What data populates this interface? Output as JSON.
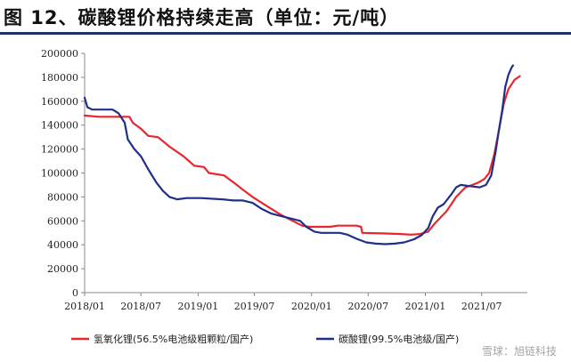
{
  "title": "图 12、碳酸锂价格持续走高（单位：元/吨）",
  "colors": {
    "title_rule": "#1e3270",
    "series_1": "#e8262d",
    "series_2": "#1f2f8a",
    "axis": "#888888"
  },
  "watermark": "雪球：旭链科技",
  "chart_data": {
    "type": "line",
    "title": "",
    "xlabel": "",
    "ylabel": "",
    "x_axis": "date",
    "xlim": [
      "2018-01-01",
      "2021-11-25"
    ],
    "ylim": [
      0,
      200000
    ],
    "yticks": [
      0,
      20000,
      40000,
      60000,
      80000,
      100000,
      120000,
      140000,
      160000,
      180000,
      200000
    ],
    "xtick_dates": [
      "2018-01-01",
      "2018-07-01",
      "2019-01-01",
      "2019-07-01",
      "2020-01-01",
      "2020-07-01",
      "2021-01-01",
      "2021-07-01"
    ],
    "xtick_labels": [
      "2018/01",
      "2018/07",
      "2019/01",
      "2019/07",
      "2020/01",
      "2020/07",
      "2021/01",
      "2021/07"
    ],
    "grid": false,
    "legend_position": "bottom",
    "series": [
      {
        "name": "氢氧化锂(56.5%电池级粗颗粒/国产)",
        "color": "#e8262d",
        "points": [
          [
            "2018-01-01",
            148000
          ],
          [
            "2018-02-15",
            147000
          ],
          [
            "2018-05-25",
            147000
          ],
          [
            "2018-06-05",
            142000
          ],
          [
            "2018-07-01",
            137000
          ],
          [
            "2018-07-25",
            131000
          ],
          [
            "2018-08-25",
            130000
          ],
          [
            "2018-10-01",
            122000
          ],
          [
            "2018-11-15",
            114000
          ],
          [
            "2018-12-20",
            106000
          ],
          [
            "2019-01-20",
            105000
          ],
          [
            "2019-02-05",
            100000
          ],
          [
            "2019-03-25",
            98000
          ],
          [
            "2019-05-01",
            91000
          ],
          [
            "2019-05-25",
            86000
          ],
          [
            "2019-06-25",
            80000
          ],
          [
            "2019-07-25",
            75000
          ],
          [
            "2019-08-25",
            70000
          ],
          [
            "2019-09-25",
            65000
          ],
          [
            "2019-11-01",
            60000
          ],
          [
            "2019-12-01",
            56000
          ],
          [
            "2019-12-25",
            55000
          ],
          [
            "2020-03-01",
            55000
          ],
          [
            "2020-03-25",
            56000
          ],
          [
            "2020-05-25",
            56000
          ],
          [
            "2020-06-08",
            55000
          ],
          [
            "2020-06-12",
            50000
          ],
          [
            "2020-08-15",
            49500
          ],
          [
            "2020-10-15",
            49000
          ],
          [
            "2020-11-15",
            48500
          ],
          [
            "2020-12-15",
            49000
          ],
          [
            "2021-01-10",
            51000
          ],
          [
            "2021-02-01",
            58000
          ],
          [
            "2021-03-10",
            68000
          ],
          [
            "2021-04-10",
            80000
          ],
          [
            "2021-05-10",
            88000
          ],
          [
            "2021-06-01",
            90000
          ],
          [
            "2021-06-20",
            92000
          ],
          [
            "2021-07-10",
            95000
          ],
          [
            "2021-07-25",
            100000
          ],
          [
            "2021-08-10",
            115000
          ],
          [
            "2021-08-25",
            135000
          ],
          [
            "2021-09-10",
            158000
          ],
          [
            "2021-09-25",
            170000
          ],
          [
            "2021-10-15",
            178000
          ],
          [
            "2021-11-01",
            181000
          ]
        ]
      },
      {
        "name": "碳酸锂(99.5%电池级/国产)",
        "color": "#1f2f8a",
        "points": [
          [
            "2018-01-01",
            163000
          ],
          [
            "2018-01-10",
            155000
          ],
          [
            "2018-01-25",
            153000
          ],
          [
            "2018-04-01",
            153000
          ],
          [
            "2018-04-20",
            150000
          ],
          [
            "2018-05-10",
            142000
          ],
          [
            "2018-05-20",
            128000
          ],
          [
            "2018-06-10",
            120000
          ],
          [
            "2018-07-01",
            114000
          ],
          [
            "2018-07-25",
            103000
          ],
          [
            "2018-08-20",
            92000
          ],
          [
            "2018-09-10",
            85000
          ],
          [
            "2018-10-01",
            80000
          ],
          [
            "2018-10-25",
            78000
          ],
          [
            "2018-11-25",
            79000
          ],
          [
            "2019-01-10",
            79000
          ],
          [
            "2019-03-20",
            78000
          ],
          [
            "2019-04-25",
            77000
          ],
          [
            "2019-05-25",
            77000
          ],
          [
            "2019-06-25",
            75000
          ],
          [
            "2019-07-25",
            70000
          ],
          [
            "2019-08-25",
            66000
          ],
          [
            "2019-09-25",
            64000
          ],
          [
            "2019-10-25",
            62000
          ],
          [
            "2019-11-25",
            60000
          ],
          [
            "2019-12-15",
            55000
          ],
          [
            "2020-01-10",
            51000
          ],
          [
            "2020-02-01",
            50000
          ],
          [
            "2020-04-01",
            50000
          ],
          [
            "2020-04-25",
            48500
          ],
          [
            "2020-05-25",
            45000
          ],
          [
            "2020-06-25",
            42000
          ],
          [
            "2020-07-25",
            41000
          ],
          [
            "2020-08-25",
            40500
          ],
          [
            "2020-09-25",
            41000
          ],
          [
            "2020-10-25",
            42000
          ],
          [
            "2020-11-25",
            44500
          ],
          [
            "2020-12-20",
            48000
          ],
          [
            "2021-01-10",
            54000
          ],
          [
            "2021-01-25",
            64000
          ],
          [
            "2021-02-10",
            71000
          ],
          [
            "2021-03-01",
            74000
          ],
          [
            "2021-03-25",
            82000
          ],
          [
            "2021-04-10",
            88000
          ],
          [
            "2021-04-25",
            90000
          ],
          [
            "2021-05-25",
            89000
          ],
          [
            "2021-06-25",
            88000
          ],
          [
            "2021-07-15",
            90000
          ],
          [
            "2021-08-01",
            98000
          ],
          [
            "2021-08-15",
            118000
          ],
          [
            "2021-08-25",
            135000
          ],
          [
            "2021-09-05",
            152000
          ],
          [
            "2021-09-15",
            172000
          ],
          [
            "2021-09-25",
            182000
          ],
          [
            "2021-10-05",
            188000
          ],
          [
            "2021-10-10",
            190000
          ]
        ]
      }
    ]
  }
}
